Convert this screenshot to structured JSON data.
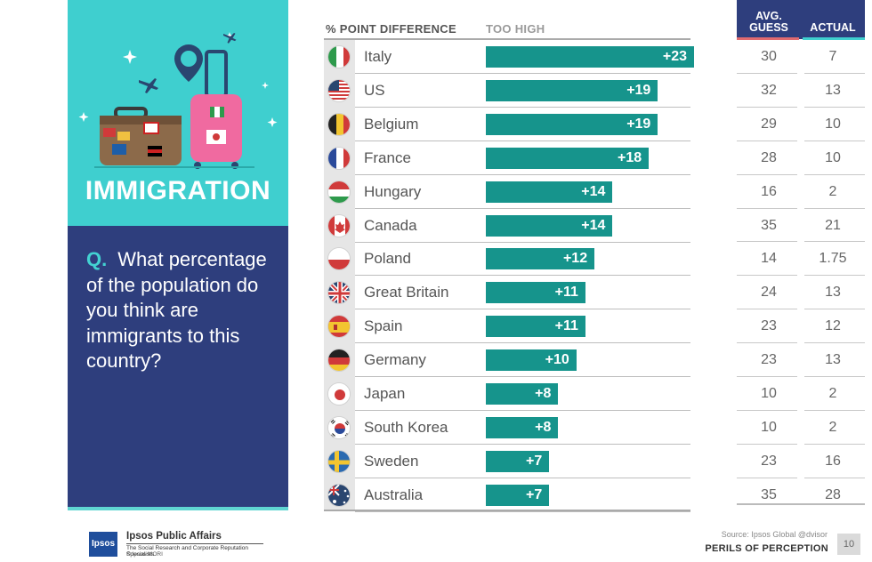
{
  "panel": {
    "topic": "IMMIGRATION",
    "question_marker": "Q.",
    "question": "What percentage of the population do you think are immigrants to this country?"
  },
  "headers": {
    "pct_diff": "% POINT DIFFERENCE",
    "too_high": "TOO HIGH",
    "avg_guess": "AVG. GUESS",
    "actual": "ACTUAL"
  },
  "colors": {
    "bar": "#16948c",
    "panel_top": "#3fcfcf",
    "panel_bottom": "#2e3e7d",
    "avg_underline": "#e06a6f",
    "actual_underline": "#3fcfcf"
  },
  "chart_data": {
    "type": "bar",
    "categories": [
      "Italy",
      "US",
      "Belgium",
      "France",
      "Hungary",
      "Canada",
      "Poland",
      "Great Britain",
      "Spain",
      "Germany",
      "Japan",
      "South Korea",
      "Sweden",
      "Australia"
    ],
    "values": [
      23,
      19,
      19,
      18,
      14,
      14,
      12,
      11,
      11,
      10,
      8,
      8,
      7,
      7
    ],
    "value_labels": [
      "+23",
      "+19",
      "+19",
      "+18",
      "+14",
      "+14",
      "+12",
      "+11",
      "+11",
      "+10",
      "+8",
      "+8",
      "+7",
      "+7"
    ],
    "avg_guess": [
      "30",
      "32",
      "29",
      "28",
      "16",
      "35",
      "14",
      "24",
      "23",
      "23",
      "10",
      "10",
      "23",
      "35"
    ],
    "actual": [
      "7",
      "13",
      "10",
      "10",
      "2",
      "21",
      "1.75",
      "13",
      "12",
      "13",
      "2",
      "2",
      "16",
      "28"
    ],
    "flags": [
      "italy-flag-icon",
      "us-flag-icon",
      "belgium-flag-icon",
      "france-flag-icon",
      "hungary-flag-icon",
      "canada-flag-icon",
      "poland-flag-icon",
      "great-britain-flag-icon",
      "spain-flag-icon",
      "germany-flag-icon",
      "japan-flag-icon",
      "south-korea-flag-icon",
      "sweden-flag-icon",
      "australia-flag-icon"
    ],
    "xlim": [
      0,
      25
    ]
  },
  "footer": {
    "logo": "Ipsos",
    "brand": "Ipsos Public Affairs",
    "brand_sub": "The Social Research and Corporate Reputation Specialists",
    "copyright": "© Ipsos MORI",
    "source": "Source: Ipsos Global @dvisor",
    "perils": "PERILS OF PERCEPTION",
    "page": "10"
  }
}
